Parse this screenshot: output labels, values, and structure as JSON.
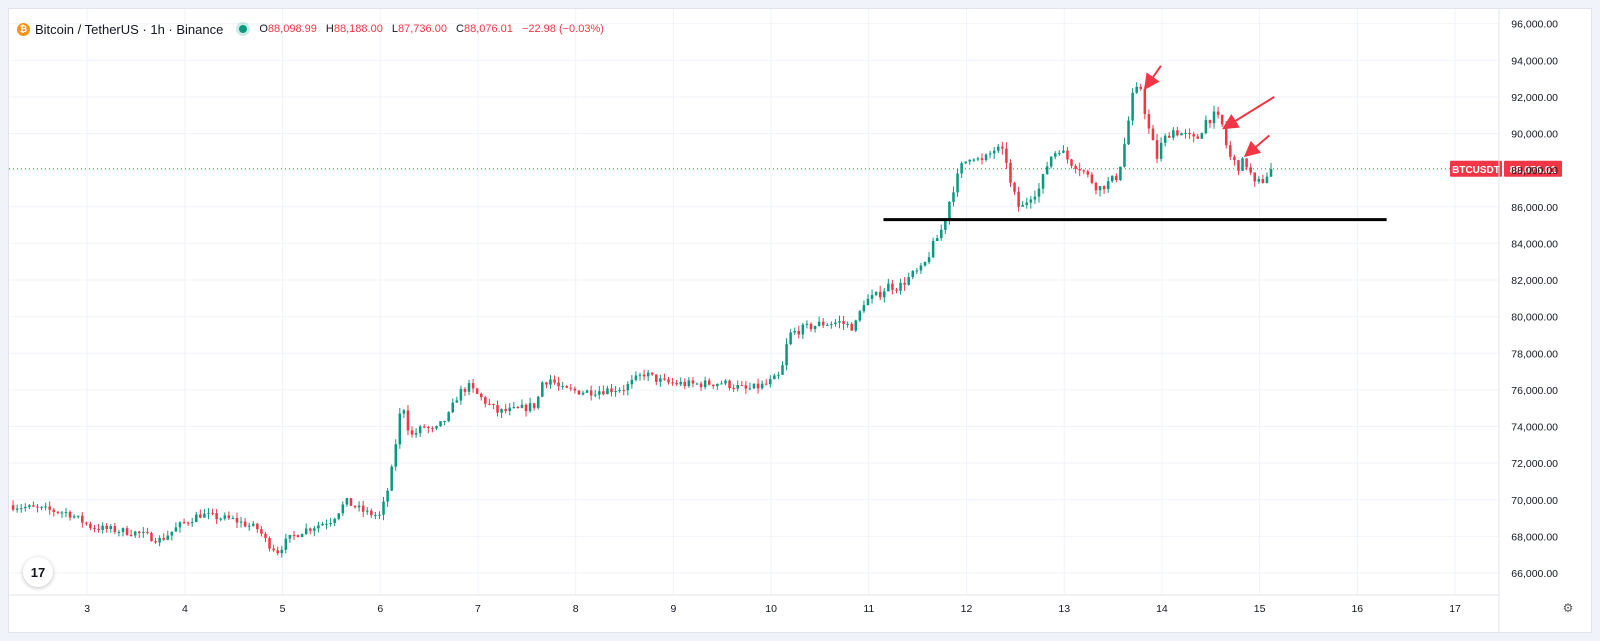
{
  "header": {
    "symbol_title": "Bitcoin / TetherUS · 1h · Binance",
    "ohlc": {
      "o_label": "O",
      "o": "88,098.99",
      "h_label": "H",
      "h": "88,188.00",
      "l_label": "L",
      "l": "87,736.00",
      "c_label": "C",
      "c": "88,076.01",
      "change": "−22.98 (−0.03%)"
    }
  },
  "logo_text": "17",
  "price_badge": {
    "symbol": "BTCUSDT",
    "value": "88,076.01"
  },
  "colors": {
    "up": "#089981",
    "down": "#f23645",
    "grid": "#f0f3fa",
    "text": "#131722",
    "arrow": "#f23645",
    "support": "#000000"
  },
  "icons": {
    "settings": "gear-icon",
    "logo": "tradingview-logo"
  },
  "chart_data": {
    "type": "candlestick",
    "interval": "1h",
    "y_axis": {
      "ticks": [
        "66,000.00",
        "68,000.00",
        "70,000.00",
        "72,000.00",
        "74,000.00",
        "76,000.00",
        "78,000.00",
        "80,000.00",
        "82,000.00",
        "84,000.00",
        "86,000.00",
        "88,000.00",
        "90,000.00",
        "92,000.00",
        "94,000.00",
        "96,000.00"
      ],
      "range": [
        64800,
        96800
      ]
    },
    "x_axis": {
      "ticks": [
        "3",
        "4",
        "5",
        "6",
        "7",
        "8",
        "9",
        "10",
        "11",
        "12",
        "13",
        "14",
        "15",
        "16",
        "17"
      ],
      "range": [
        2.2,
        17.45
      ]
    },
    "last_price": 88076.01,
    "support_line": {
      "price": 85300,
      "from_day": 11.15,
      "to_day": 16.3
    },
    "annotation_arrows": [
      {
        "from": [
          13.99,
          93700
        ],
        "to": [
          13.84,
          92550
        ]
      },
      {
        "from": [
          15.15,
          92000
        ],
        "to": [
          14.65,
          90350
        ]
      },
      {
        "from": [
          15.1,
          89900
        ],
        "to": [
          14.87,
          88850
        ]
      }
    ],
    "price_path": [
      [
        2.2,
        69700
      ],
      [
        2.8,
        69300
      ],
      [
        3.05,
        68500
      ],
      [
        3.5,
        68200
      ],
      [
        3.75,
        67800
      ],
      [
        3.95,
        68600
      ],
      [
        4.15,
        69200
      ],
      [
        4.5,
        68900
      ],
      [
        4.75,
        68400
      ],
      [
        4.85,
        67600
      ],
      [
        4.95,
        67200
      ],
      [
        5.05,
        67800
      ],
      [
        5.2,
        68300
      ],
      [
        5.5,
        68900
      ],
      [
        5.65,
        69900
      ],
      [
        5.85,
        69300
      ],
      [
        6.0,
        69100
      ],
      [
        6.1,
        71000
      ],
      [
        6.2,
        74600
      ],
      [
        6.25,
        75100
      ],
      [
        6.3,
        73400
      ],
      [
        6.45,
        74000
      ],
      [
        6.55,
        73700
      ],
      [
        6.7,
        74600
      ],
      [
        6.8,
        75800
      ],
      [
        6.9,
        76200
      ],
      [
        7.0,
        75700
      ],
      [
        7.2,
        74800
      ],
      [
        7.4,
        74900
      ],
      [
        7.6,
        75200
      ],
      [
        7.65,
        76400
      ],
      [
        7.75,
        76600
      ],
      [
        7.85,
        76000
      ],
      [
        8.1,
        75900
      ],
      [
        8.5,
        76100
      ],
      [
        8.7,
        76900
      ],
      [
        8.9,
        76400
      ],
      [
        9.2,
        76300
      ],
      [
        9.5,
        76400
      ],
      [
        9.75,
        76000
      ],
      [
        9.95,
        76300
      ],
      [
        10.1,
        76800
      ],
      [
        10.18,
        79000
      ],
      [
        10.3,
        79300
      ],
      [
        10.5,
        79600
      ],
      [
        10.7,
        79700
      ],
      [
        10.85,
        79400
      ],
      [
        10.95,
        80800
      ],
      [
        11.1,
        81200
      ],
      [
        11.2,
        81700
      ],
      [
        11.3,
        81600
      ],
      [
        11.45,
        82300
      ],
      [
        11.55,
        82600
      ],
      [
        11.65,
        83800
      ],
      [
        11.75,
        84800
      ],
      [
        11.85,
        86800
      ],
      [
        11.95,
        88200
      ],
      [
        12.05,
        88900
      ],
      [
        12.15,
        88400
      ],
      [
        12.3,
        89200
      ],
      [
        12.4,
        88800
      ],
      [
        12.45,
        87200
      ],
      [
        12.55,
        85800
      ],
      [
        12.65,
        86600
      ],
      [
        12.75,
        87000
      ],
      [
        12.85,
        88700
      ],
      [
        12.95,
        89200
      ],
      [
        13.05,
        88500
      ],
      [
        13.15,
        88200
      ],
      [
        13.25,
        87600
      ],
      [
        13.35,
        87000
      ],
      [
        13.45,
        87300
      ],
      [
        13.55,
        87700
      ],
      [
        13.62,
        89500
      ],
      [
        13.7,
        92000
      ],
      [
        13.78,
        92600
      ],
      [
        13.85,
        90500
      ],
      [
        13.95,
        88700
      ],
      [
        14.0,
        89500
      ],
      [
        14.1,
        90200
      ],
      [
        14.2,
        90000
      ],
      [
        14.35,
        89600
      ],
      [
        14.45,
        90700
      ],
      [
        14.55,
        91000
      ],
      [
        14.62,
        90400
      ],
      [
        14.68,
        88800
      ],
      [
        14.78,
        88200
      ],
      [
        14.85,
        88500
      ],
      [
        14.9,
        87900
      ],
      [
        14.95,
        87200
      ],
      [
        15.05,
        87500
      ],
      [
        15.1,
        88000
      ],
      [
        15.15,
        88076
      ]
    ]
  }
}
